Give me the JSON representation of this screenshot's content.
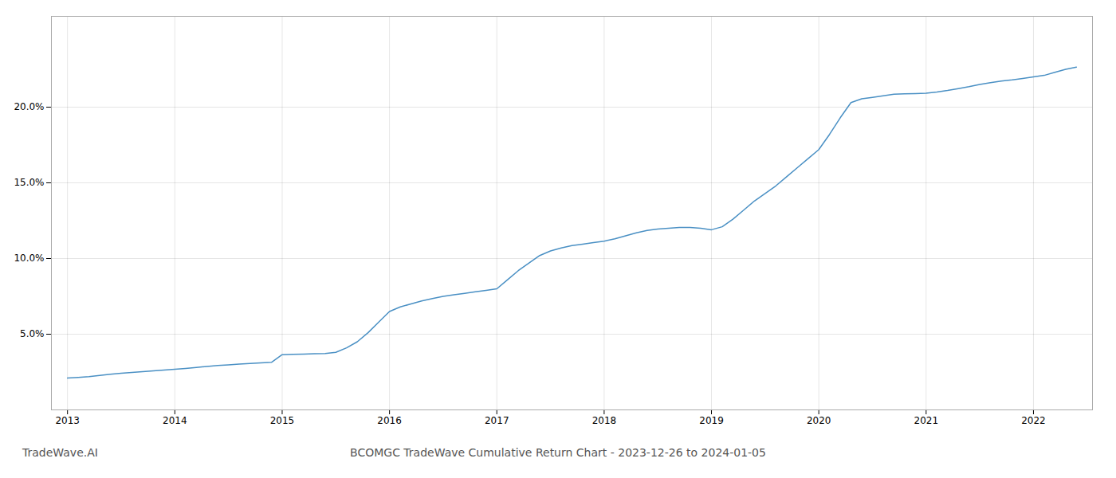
{
  "chart_data": {
    "type": "line",
    "title": "BCOMGC TradeWave Cumulative Return Chart - 2023-12-26 to 2024-01-05",
    "annotations": [
      "TradeWave.AI"
    ],
    "x": [
      2013.0,
      2013.1,
      2013.2,
      2013.3,
      2013.4,
      2013.5,
      2013.6,
      2013.7,
      2013.8,
      2013.9,
      2014.0,
      2014.1,
      2014.2,
      2014.3,
      2014.4,
      2014.5,
      2014.6,
      2014.7,
      2014.8,
      2014.9,
      2015.0,
      2015.1,
      2015.2,
      2015.3,
      2015.4,
      2015.5,
      2015.6,
      2015.7,
      2015.8,
      2015.9,
      2016.0,
      2016.1,
      2016.2,
      2016.3,
      2016.4,
      2016.5,
      2016.6,
      2016.7,
      2016.8,
      2016.9,
      2017.0,
      2017.1,
      2017.2,
      2017.3,
      2017.4,
      2017.5,
      2017.6,
      2017.7,
      2017.8,
      2017.9,
      2018.0,
      2018.1,
      2018.2,
      2018.3,
      2018.4,
      2018.5,
      2018.6,
      2018.7,
      2018.8,
      2018.9,
      2019.0,
      2019.1,
      2019.2,
      2019.3,
      2019.4,
      2019.5,
      2019.6,
      2019.7,
      2019.8,
      2019.9,
      2020.0,
      2020.1,
      2020.2,
      2020.3,
      2020.4,
      2020.5,
      2020.6,
      2020.7,
      2020.8,
      2020.9,
      2021.0,
      2021.1,
      2021.2,
      2021.3,
      2021.4,
      2021.5,
      2021.6,
      2021.7,
      2021.8,
      2021.9,
      2022.0,
      2022.1,
      2022.2,
      2022.3,
      2022.4
    ],
    "values": [
      2.1,
      2.15,
      2.2,
      2.28,
      2.35,
      2.42,
      2.48,
      2.53,
      2.58,
      2.63,
      2.68,
      2.74,
      2.8,
      2.87,
      2.93,
      2.98,
      3.02,
      3.06,
      3.1,
      3.14,
      3.65,
      3.67,
      3.69,
      3.71,
      3.73,
      3.8,
      4.1,
      4.5,
      5.1,
      5.8,
      6.5,
      6.8,
      7.0,
      7.2,
      7.35,
      7.5,
      7.6,
      7.7,
      7.8,
      7.9,
      8.0,
      8.6,
      9.2,
      9.7,
      10.2,
      10.5,
      10.7,
      10.85,
      10.95,
      11.05,
      11.15,
      11.3,
      11.5,
      11.7,
      11.85,
      11.95,
      12.0,
      12.05,
      12.05,
      12.0,
      11.9,
      12.1,
      12.6,
      13.2,
      13.8,
      14.3,
      14.8,
      15.4,
      16.0,
      16.6,
      17.2,
      18.2,
      19.3,
      20.3,
      20.55,
      20.65,
      20.75,
      20.85,
      20.88,
      20.9,
      20.92,
      21.0,
      21.1,
      21.22,
      21.35,
      21.5,
      21.62,
      21.72,
      21.8,
      21.9,
      22.0,
      22.1,
      22.3,
      22.5,
      22.65
    ],
    "color": "#4a90c4",
    "xlim": [
      2012.85,
      2022.55
    ],
    "xticks": [
      2013,
      2014,
      2015,
      2016,
      2017,
      2018,
      2019,
      2020,
      2021,
      2022
    ],
    "ylim": [
      0,
      26
    ],
    "yticks": [
      {
        "value": 5.0,
        "label": "5.0%"
      },
      {
        "value": 10.0,
        "label": "10.0%"
      },
      {
        "value": 15.0,
        "label": "15.0%"
      },
      {
        "value": 20.0,
        "label": "20.0%"
      }
    ],
    "grid": true
  }
}
